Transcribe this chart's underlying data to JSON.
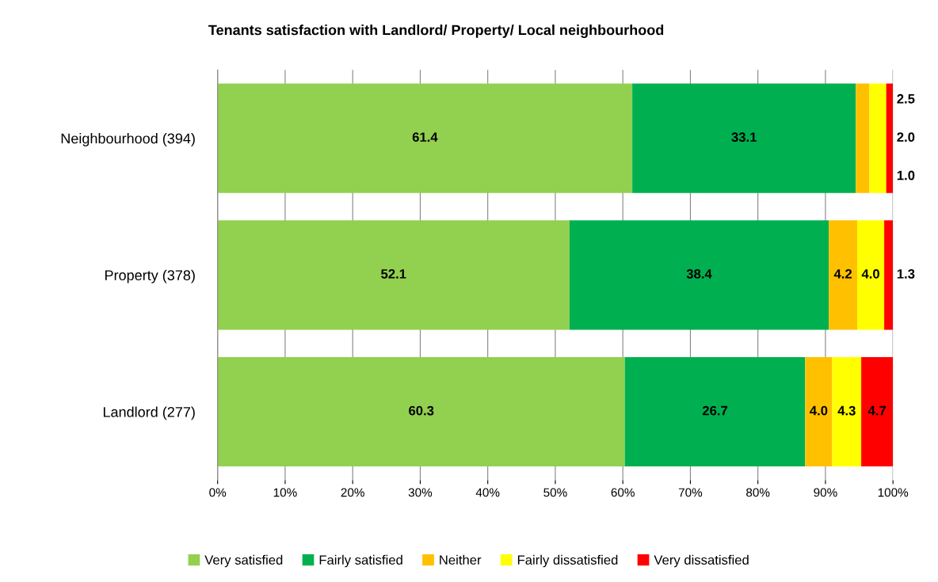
{
  "chart_data": {
    "type": "bar",
    "orientation": "horizontal",
    "stacked": true,
    "title": "Tenants satisfaction with Landlord/ Property/ Local neighbourhood",
    "categories": [
      "Neighbourhood (394)",
      "Property (378)",
      "Landlord (277)"
    ],
    "series": [
      {
        "name": "Very satisfied",
        "color": "#92d050",
        "values": [
          61.4,
          52.1,
          60.3
        ],
        "value_labels": [
          "61.4",
          "52.1",
          "60.3"
        ]
      },
      {
        "name": "Fairly satisfied",
        "color": "#00b050",
        "values": [
          33.1,
          38.4,
          26.7
        ],
        "value_labels": [
          "33.1",
          "38.4",
          "26.7"
        ]
      },
      {
        "name": "Neither",
        "color": "#ffc000",
        "values": [
          2.0,
          4.2,
          4.0
        ],
        "value_labels": [
          "2.0",
          "4.2",
          "4.0"
        ]
      },
      {
        "name": "Fairly dissatisfied",
        "color": "#ffff00",
        "values": [
          2.5,
          4.0,
          4.3
        ],
        "value_labels": [
          "2.5",
          "4.0",
          "4.3"
        ]
      },
      {
        "name": "Very dissatisfied",
        "color": "#ff0000",
        "values": [
          1.0,
          1.3,
          4.7
        ],
        "value_labels": [
          "1.0",
          "1.3",
          "4.7"
        ]
      }
    ],
    "xlim": [
      0,
      100
    ],
    "xticks": [
      {
        "value": 0,
        "label": "0%"
      },
      {
        "value": 10,
        "label": "10%"
      },
      {
        "value": 20,
        "label": "20%"
      },
      {
        "value": 30,
        "label": "30%"
      },
      {
        "value": 40,
        "label": "40%"
      },
      {
        "value": 50,
        "label": "50%"
      },
      {
        "value": 60,
        "label": "60%"
      },
      {
        "value": 70,
        "label": "70%"
      },
      {
        "value": 80,
        "label": "80%"
      },
      {
        "value": 90,
        "label": "90%"
      },
      {
        "value": 100,
        "label": "100%"
      }
    ],
    "grid": "x",
    "legend": "bottom"
  }
}
